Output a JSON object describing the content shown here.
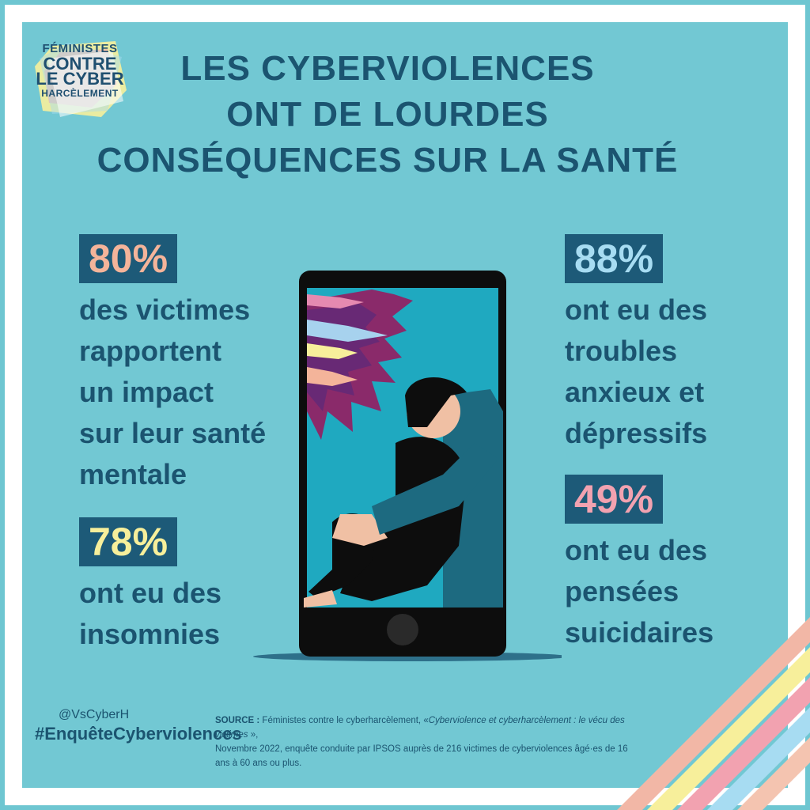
{
  "logo": {
    "lines": [
      "FÉMINISTES",
      "CONTRE",
      "LE CYBER",
      "HARCÈLEMENT"
    ]
  },
  "title": {
    "line1": "LES CYBERVIOLENCES",
    "line2": "ONT DE LOURDES",
    "line3": "CONSÉQUENCES SUR LA SANTÉ"
  },
  "stats": [
    {
      "value": "80%",
      "color": "#f4b49a",
      "lines": [
        "des victimes",
        "rapportent",
        "un impact",
        "sur leur santé",
        "mentale"
      ]
    },
    {
      "value": "78%",
      "color": "#f7ef9b",
      "lines": [
        "ont eu des",
        "insomnies"
      ]
    },
    {
      "value": "88%",
      "color": "#a7dcf2",
      "lines": [
        "ont eu des",
        "troubles",
        "anxieux et",
        "dépressifs"
      ]
    },
    {
      "value": "49%",
      "color": "#f2a2b0",
      "lines": [
        "ont eu des",
        "pensées",
        "suicidaires"
      ]
    }
  ],
  "footer": {
    "handle": "@VsCyberH",
    "hashtag": "#EnquêteCyberviolences",
    "source_label": "SOURCE :",
    "source_text1": " Féministes contre le cyberharcèlement, «",
    "source_italic": "Cyberviolence et cyberharcèlement : le vécu des victimes",
    "source_text2": " »,",
    "source_line2": "Novembre 2022, enquête conduite par IPSOS auprès de 216 victimes de cyberviolences âgé·es de 16 ans à 60 ans ou plus."
  },
  "colors": {
    "background": "#72c8d3",
    "text_dark": "#1b5470",
    "badge_bg": "#1d5a78",
    "stripes": [
      "#f2b7a6",
      "#f7ef9b",
      "#f2a2b0",
      "#a7dcf2",
      "#f4c4b0"
    ]
  }
}
